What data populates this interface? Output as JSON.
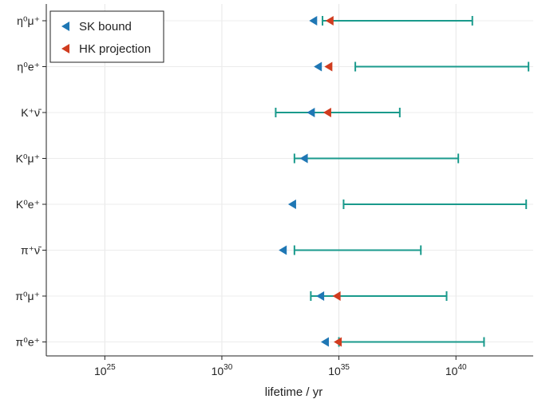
{
  "chart_data": {
    "type": "scatter",
    "xlabel": "lifetime / yr",
    "x_scale": "log10",
    "xlim_exponent": [
      22.5,
      43.3
    ],
    "x_ticks": [
      {
        "exp": 25,
        "base": "10",
        "sup": "25"
      },
      {
        "exp": 30,
        "base": "10",
        "sup": "30"
      },
      {
        "exp": 35,
        "base": "10",
        "sup": "35"
      },
      {
        "exp": 40,
        "base": "10",
        "sup": "40"
      }
    ],
    "grid": true,
    "legend_position": "top-left",
    "series": [
      {
        "name": "SK bound",
        "color": "#1f77b4"
      },
      {
        "name": "HK projection",
        "color": "#d03c1f"
      }
    ],
    "range_color": "#1a9a8c",
    "channels": [
      {
        "label": "η⁰μ⁺",
        "sk_exp": 33.9,
        "hk_exp": 34.6,
        "range_exp": [
          34.3,
          40.7
        ]
      },
      {
        "label": "η⁰e⁺",
        "sk_exp": 34.1,
        "hk_exp": 34.55,
        "range_exp": [
          35.7,
          43.1
        ]
      },
      {
        "label": "K⁺ν̄",
        "sk_exp": 33.8,
        "hk_exp": 34.5,
        "range_exp": [
          32.3,
          37.6
        ]
      },
      {
        "label": "K⁰μ⁺",
        "sk_exp": 33.5,
        "hk_exp": null,
        "range_exp": [
          33.1,
          40.1
        ]
      },
      {
        "label": "K⁰e⁺",
        "sk_exp": 33.0,
        "hk_exp": null,
        "range_exp": [
          35.2,
          43.0
        ]
      },
      {
        "label": "π⁺ν̄",
        "sk_exp": 32.6,
        "hk_exp": null,
        "range_exp": [
          33.1,
          38.5
        ]
      },
      {
        "label": "π⁰μ⁺",
        "sk_exp": 34.2,
        "hk_exp": 34.9,
        "range_exp": [
          33.8,
          39.6
        ]
      },
      {
        "label": "π⁰e⁺",
        "sk_exp": 34.4,
        "hk_exp": 34.95,
        "range_exp": [
          35.0,
          41.2
        ]
      }
    ]
  }
}
